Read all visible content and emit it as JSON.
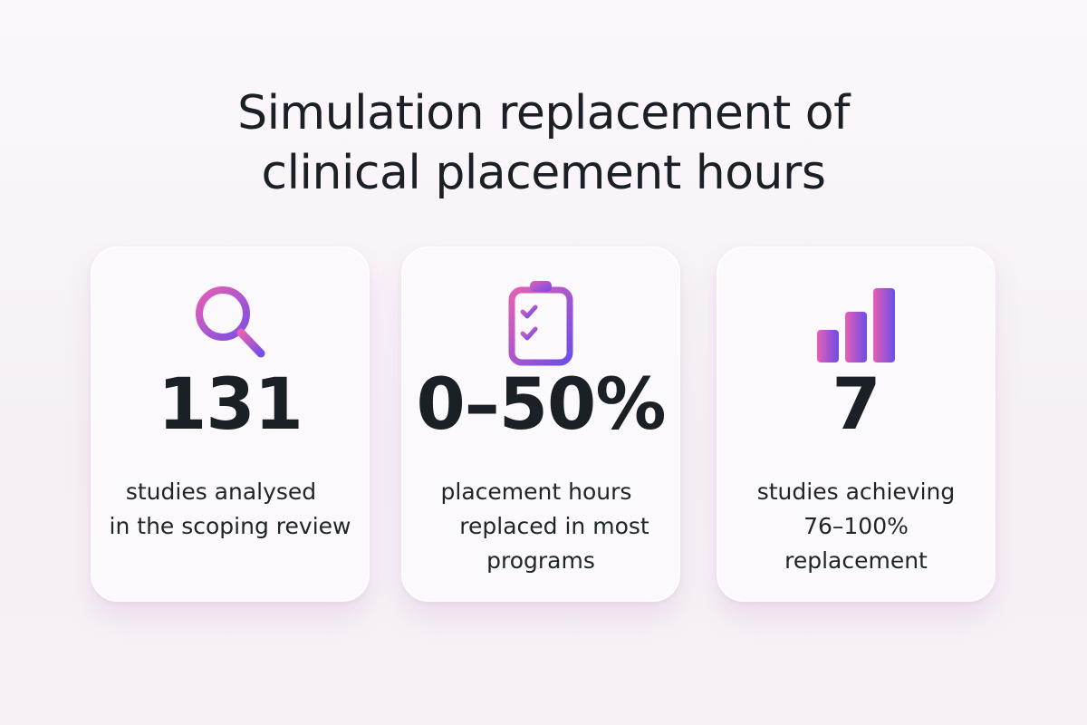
{
  "title": {
    "line1": "Simulation replacement of",
    "line2": "clinical placement hours"
  },
  "cards": [
    {
      "icon": "magnifier-icon",
      "stat": "131",
      "lines": [
        "studies analysed",
        "in the scoping review"
      ]
    },
    {
      "icon": "clipboard-checklist-icon",
      "stat": "0–50%",
      "lines": [
        "placement hours",
        "replaced in most",
        "programs"
      ]
    },
    {
      "icon": "bar-chart-icon",
      "stat": "7",
      "lines": [
        "studies achieving",
        "76–100%",
        "replacement"
      ]
    }
  ],
  "colors": {
    "gradient_start": "#e65fb4",
    "gradient_end": "#6a4ee8",
    "text": "#1b1f26",
    "card": "#fbf9fb"
  }
}
